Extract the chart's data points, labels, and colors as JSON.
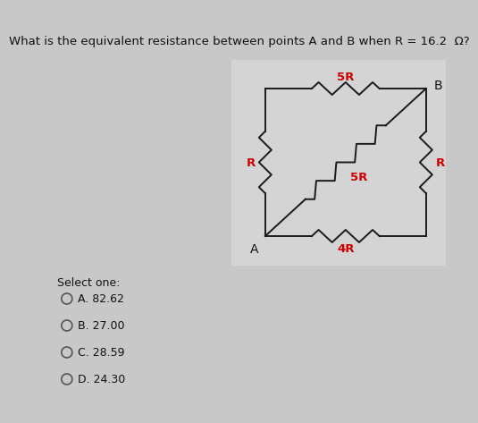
{
  "title": "What is the equivalent resistance between points A and B when R = 16.2  Ω?",
  "title_fontsize": 9.5,
  "bg_color": "#c8c8c8",
  "circuit_box_bg": "#dcdcdc",
  "resistor_color": "#cc0000",
  "line_color": "#1a1a1a",
  "label_color_black": "#111111",
  "select_one": "Select one:",
  "options": [
    "A. 82.62",
    "B. 27.00",
    "C. 28.59",
    "D. 24.30"
  ],
  "circuit": {
    "resistor_label_5R_top": "5R",
    "resistor_label_R_left": "R",
    "resistor_label_R_right": "R",
    "resistor_label_5R_diag": "5R",
    "resistor_label_4R_bot": "4R",
    "label_A": "A",
    "label_B": "B"
  }
}
